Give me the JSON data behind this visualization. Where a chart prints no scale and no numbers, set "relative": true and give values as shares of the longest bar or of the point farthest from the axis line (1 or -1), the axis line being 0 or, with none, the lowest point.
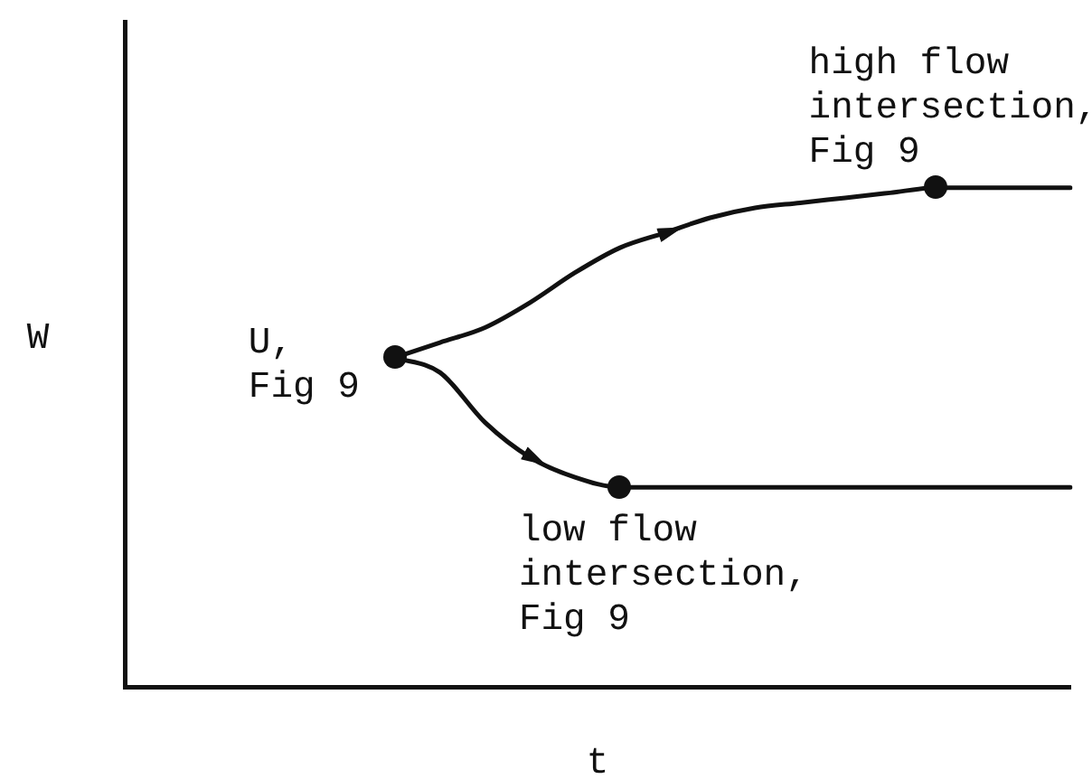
{
  "chart_data": {
    "type": "line",
    "relative": true,
    "xlabel": "t",
    "ylabel": "W",
    "categories": [
      null,
      null,
      null,
      null,
      null,
      null,
      null,
      null,
      null,
      null,
      null,
      null,
      null,
      null,
      null,
      null,
      null,
      null,
      null,
      null,
      null,
      null
    ],
    "series": [
      {
        "color": "#111111",
        "values": [
          null,
          null,
          null,
          null,
          null,
          null,
          0.66,
          0.69,
          0.72,
          0.77,
          0.83,
          0.88,
          0.91,
          0.94,
          0.96,
          0.97,
          0.98,
          0.99,
          1,
          1,
          1,
          1
        ]
      },
      {
        "color": "#111111",
        "values": [
          null,
          null,
          null,
          null,
          null,
          null,
          0.66,
          0.63,
          0.53,
          0.46,
          0.42,
          0.4,
          0.4,
          0.4,
          0.4,
          0.4,
          0.4,
          0.4,
          0.4,
          0.4,
          0.4,
          0.4
        ]
      }
    ],
    "annotations": [
      "U,\nFig 9",
      "low flow\nintersection,\nFig 9",
      "high flow\nintersection,\nFig 9"
    ]
  }
}
